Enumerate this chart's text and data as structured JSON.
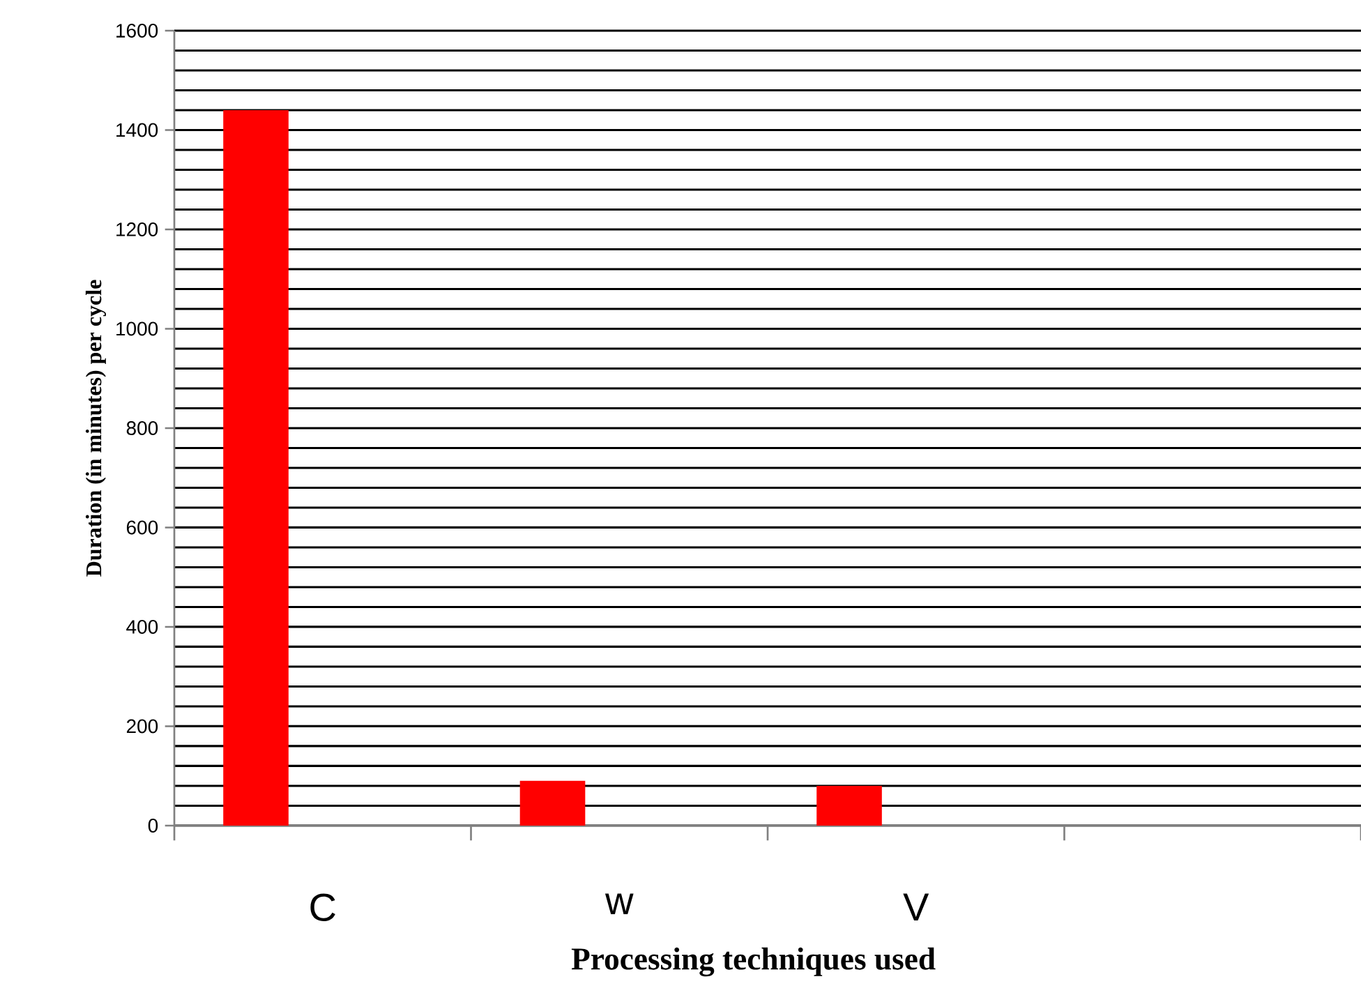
{
  "chart_data": {
    "type": "bar",
    "xlabel": "Processing techniques used",
    "ylabel": "Duration (in minutes) per cycle",
    "categories": [
      "C",
      "w",
      "V",
      null
    ],
    "values": [
      1440,
      90,
      80,
      null
    ],
    "color": "#ff0000",
    "ylim": [
      0,
      1600
    ],
    "yticks": [
      0,
      200,
      400,
      600,
      800,
      1000,
      1200,
      1400,
      1600
    ],
    "grid": "y"
  }
}
